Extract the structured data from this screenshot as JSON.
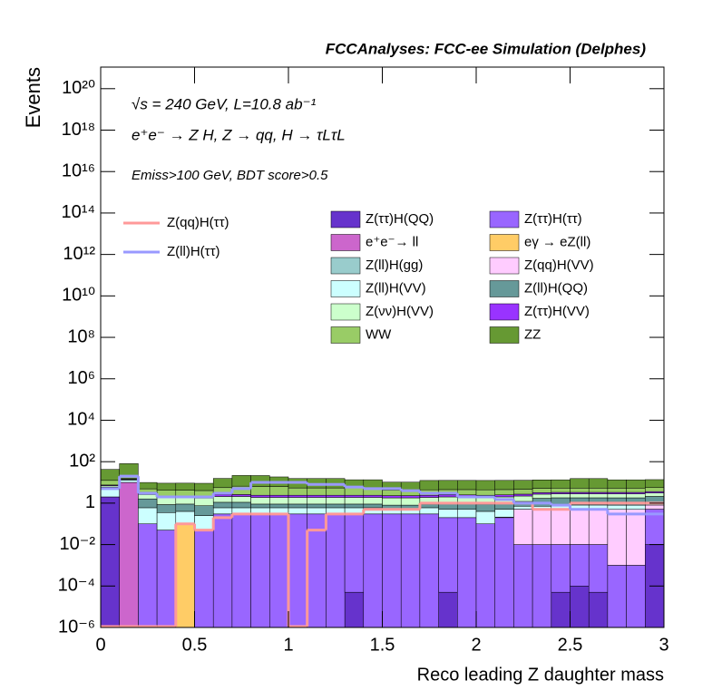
{
  "chart_data": {
    "type": "stacked_histogram",
    "title": "FCCAnalyses: FCC-ee Simulation (Delphes)",
    "annotations": [
      "√s = 240 GeV, L=10.8 ab⁻¹",
      "e⁺e⁻ → Z H, Z → qq, H → τLτL",
      "Emiss>100 GeV, BDT score>0.5"
    ],
    "x_label": "Reco leading Z daughter mass",
    "y_label": "Events",
    "log_y": true,
    "bins": [
      0,
      0.1,
      0.2,
      0.3,
      0.4,
      0.5,
      0.6,
      0.7,
      0.8,
      0.9,
      1,
      1.1,
      1.2,
      1.3,
      1.4,
      1.5,
      1.6,
      1.7,
      1.8,
      1.9,
      2,
      2.1,
      2.2,
      2.3,
      2.4,
      2.5,
      2.6,
      2.7,
      2.8,
      2.9,
      3
    ],
    "xlim": [
      0,
      3
    ],
    "xticks": [
      0,
      0.5,
      1,
      1.5,
      2,
      2.5,
      3
    ],
    "ylim": [
      1e-06,
      1.1e+21
    ],
    "yticks": [
      {
        "value": 1e-06,
        "label": "10⁻⁶"
      },
      {
        "value": 0.0001,
        "label": "10⁻⁴"
      },
      {
        "value": 0.01,
        "label": "10⁻²"
      },
      1,
      {
        "value": 100,
        "label": "10²"
      },
      {
        "value": 10000.0,
        "label": "10⁴"
      },
      {
        "value": 1000000.0,
        "label": "10⁶"
      },
      {
        "value": 100000000.0,
        "label": "10⁸"
      },
      {
        "value": 10000000000.0,
        "label": "10¹⁰"
      },
      {
        "value": 1000000000000.0,
        "label": "10¹²"
      },
      {
        "value": 100000000000000.0,
        "label": "10¹⁴"
      },
      {
        "value": 1e+16,
        "label": "10¹⁶"
      },
      {
        "value": 1e+18,
        "label": "10¹⁸"
      },
      {
        "value": 1e+20,
        "label": "10²⁰"
      }
    ],
    "series": [
      {
        "name": "Z(ττ)H(QQ)",
        "color": "#6633cc",
        "values": [
          2,
          0,
          0,
          0,
          0,
          0,
          0,
          0,
          0,
          0,
          0,
          0,
          0,
          5e-05,
          0,
          0,
          0,
          0,
          5e-05,
          0,
          0,
          0,
          0,
          0,
          5e-05,
          0.0001,
          5e-05,
          0,
          0,
          0.01
        ]
      },
      {
        "name": "Z(ττ)H(ττ)",
        "color": "#9966ff",
        "values": [
          0,
          0,
          0.1,
          0.05,
          0,
          0.05,
          0.3,
          0.3,
          0.3,
          0.3,
          0.3,
          0.3,
          0.3,
          0.3,
          0.3,
          0.3,
          0.3,
          0.3,
          0.2,
          0.2,
          0.1,
          0.2,
          0.01,
          0.01,
          0.01,
          0.01,
          0.01,
          0.001,
          0.001,
          0.5
        ]
      },
      {
        "name": "e⁺e⁻→ ll",
        "color": "#cc66cc",
        "values": [
          0,
          10,
          0,
          0,
          0,
          0,
          0,
          0,
          0,
          0,
          0,
          0,
          0,
          0,
          0,
          0,
          0,
          0,
          0,
          0,
          0,
          0,
          0,
          0,
          0,
          0,
          0,
          0,
          0,
          0
        ]
      },
      {
        "name": "eγ → eZ(ll)",
        "color": "#ffcc66",
        "values": [
          0,
          0,
          0,
          0,
          0.1,
          0,
          0,
          0,
          0,
          0,
          0,
          0,
          0,
          0,
          0,
          0,
          0,
          0,
          0,
          0,
          0,
          0,
          0,
          0,
          0,
          0,
          0,
          0,
          0,
          0
        ]
      },
      {
        "name": "Z(ll)H(gg)",
        "color": "#99cccc",
        "values": [
          0,
          0,
          0,
          0,
          0,
          0,
          0,
          0,
          0,
          0,
          0,
          0,
          0,
          0,
          0,
          0,
          0,
          0,
          0,
          0,
          0,
          0.01,
          0,
          0,
          0,
          0,
          0,
          0,
          0,
          0
        ]
      },
      {
        "name": "Z(qq)H(VV)",
        "color": "#ffccff",
        "values": [
          0,
          0,
          0,
          0,
          0,
          0,
          0,
          0,
          0,
          0,
          0,
          0,
          0,
          0,
          0,
          0,
          0,
          0,
          0,
          0,
          0,
          0,
          0.5,
          0.5,
          0.5,
          0.5,
          0.5,
          0.5,
          0.5,
          0.3
        ]
      },
      {
        "name": "Z(ll)H(VV)",
        "color": "#ccffff",
        "values": [
          3,
          3,
          0.5,
          0.3,
          0.3,
          0.2,
          0.3,
          0.3,
          0.3,
          0.3,
          0.3,
          0.3,
          0.3,
          0.3,
          0.3,
          0.2,
          0.2,
          0.3,
          0.3,
          0.3,
          0.3,
          0.3,
          0.2,
          0.2,
          0.3,
          0.3,
          0.3,
          0.3,
          0.3,
          0.3
        ]
      },
      {
        "name": "Z(ll)H(QQ)",
        "color": "#669999",
        "values": [
          1,
          1,
          1,
          0.5,
          0.5,
          0.5,
          0.5,
          0.5,
          0.3,
          0.3,
          0.3,
          0.3,
          0.3,
          0.3,
          0.3,
          0.3,
          0.3,
          0.3,
          0.5,
          0.5,
          0.5,
          0.5,
          0.5,
          1,
          1,
          1,
          1,
          1,
          1,
          1
        ]
      },
      {
        "name": "Z(νν)H(VV)",
        "color": "#ccffcc",
        "values": [
          1,
          1,
          1,
          1,
          1,
          1,
          1,
          1,
          1,
          1,
          1,
          1,
          1,
          1,
          1,
          1,
          1,
          1,
          1,
          1,
          1,
          1,
          1,
          1,
          1,
          1,
          1,
          1,
          1,
          1
        ]
      },
      {
        "name": "Z(ττ)H(VV)",
        "color": "#9933ff",
        "values": [
          0.5,
          0.5,
          0.3,
          0.3,
          0.3,
          0.3,
          0.5,
          0.5,
          0.5,
          0.5,
          0.5,
          0.5,
          0.5,
          0.5,
          0.5,
          0.5,
          0.5,
          0.5,
          0.5,
          0.5,
          0.5,
          0.5,
          0.5,
          0.5,
          0.5,
          0.5,
          0.5,
          0.5,
          0.5,
          0.5
        ]
      },
      {
        "name": "WW",
        "color": "#99cc66",
        "values": [
          5,
          5,
          2,
          2,
          2,
          2,
          3,
          4,
          4,
          4,
          3,
          3,
          3,
          3,
          3,
          2,
          2,
          2,
          2,
          2,
          2,
          2,
          2,
          2,
          2,
          2,
          2,
          2,
          2,
          2
        ]
      },
      {
        "name": "ZZ",
        "color": "#669933",
        "values": [
          30,
          60,
          5,
          5,
          5,
          5,
          10,
          15,
          15,
          12,
          10,
          10,
          10,
          8,
          8,
          6,
          6,
          8,
          8,
          8,
          8,
          8,
          8,
          8,
          8,
          10,
          10,
          8,
          8,
          8
        ]
      }
    ],
    "lines": [
      {
        "name": "Z(qq)H(ττ)",
        "color": "#ff9999",
        "values": [
          0,
          0,
          0,
          0,
          0.1,
          0.05,
          0.2,
          0.3,
          0.3,
          0.3,
          0,
          0.05,
          0.3,
          0.3,
          0.5,
          0.5,
          0.5,
          1,
          1,
          1,
          1,
          1,
          1,
          0.5,
          0.5,
          1,
          1,
          1,
          1,
          1
        ]
      },
      {
        "name": "Z(ll)H(ττ)",
        "color": "#9999ff",
        "values": [
          5,
          20,
          3,
          2,
          2,
          2,
          3,
          5,
          10,
          10,
          10,
          8,
          8,
          6,
          5,
          5,
          4,
          3,
          3,
          2,
          2,
          1.5,
          1,
          1,
          0.8,
          0.5,
          0.5,
          0.3,
          0.3,
          0.3
        ]
      }
    ]
  }
}
